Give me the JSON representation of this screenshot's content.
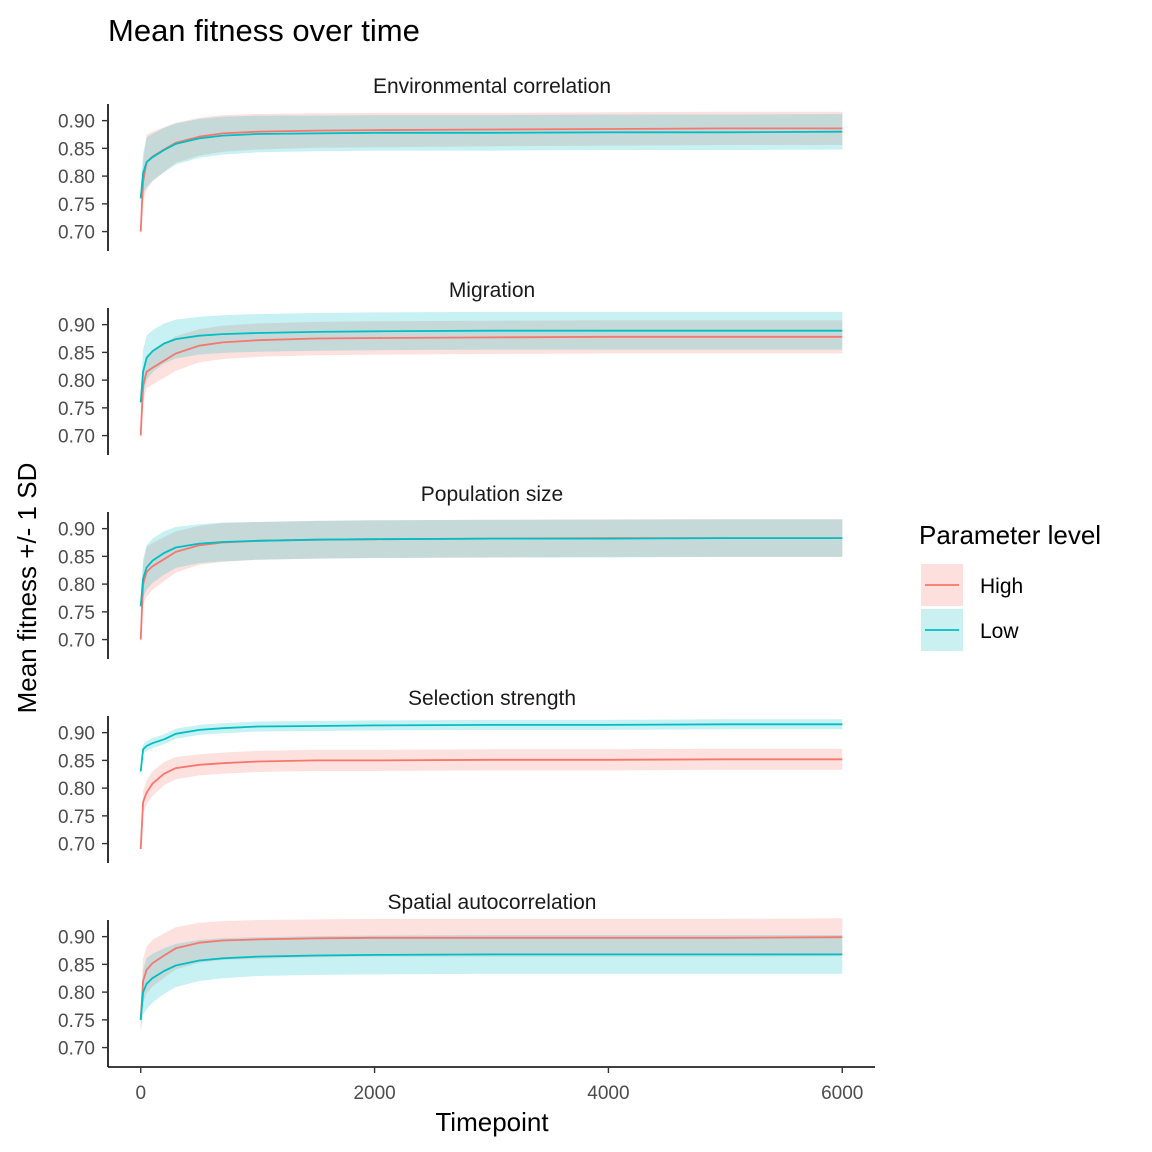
{
  "chart_data": {
    "type": "line",
    "title": "Mean fitness over time",
    "xlabel": "Timepoint",
    "ylabel": "Mean fitness +/- 1 SD",
    "xlim": [
      -280,
      6280
    ],
    "ylim": [
      0.665,
      0.93
    ],
    "xticks": [
      0,
      2000,
      4000,
      6000
    ],
    "yticks": [
      0.7,
      0.75,
      0.8,
      0.85,
      0.9
    ],
    "ytick_labels": [
      "0.70",
      "0.75",
      "0.80",
      "0.85",
      "0.90"
    ],
    "xtick_labels": [
      "0",
      "2000",
      "4000",
      "6000"
    ],
    "x": [
      0,
      20,
      50,
      100,
      200,
      300,
      500,
      700,
      1000,
      1500,
      2000,
      3000,
      4000,
      5000,
      6000
    ],
    "legend": {
      "title": "Parameter level",
      "position": "right",
      "entries": [
        {
          "name": "High",
          "color": "#F8766D",
          "fill": "#fde0de"
        },
        {
          "name": "Low",
          "color": "#00BFC4",
          "fill": "#cbf0f1"
        }
      ]
    },
    "facets": [
      {
        "name": "Environmental correlation",
        "series": [
          {
            "name": "High",
            "mean": [
              0.7,
              0.79,
              0.825,
              0.835,
              0.848,
              0.86,
              0.871,
              0.877,
              0.88,
              0.882,
              0.883,
              0.884,
              0.885,
              0.886,
              0.886
            ],
            "sd": [
              0.01,
              0.035,
              0.05,
              0.045,
              0.04,
              0.036,
              0.034,
              0.033,
              0.032,
              0.031,
              0.031,
              0.03,
              0.03,
              0.03,
              0.03
            ]
          },
          {
            "name": "Low",
            "mean": [
              0.76,
              0.805,
              0.825,
              0.834,
              0.847,
              0.858,
              0.868,
              0.873,
              0.876,
              0.877,
              0.878,
              0.878,
              0.879,
              0.879,
              0.88
            ],
            "sd": [
              0.02,
              0.035,
              0.045,
              0.042,
              0.04,
              0.037,
              0.035,
              0.034,
              0.033,
              0.032,
              0.032,
              0.032,
              0.032,
              0.032,
              0.032
            ]
          }
        ]
      },
      {
        "name": "Migration",
        "series": [
          {
            "name": "High",
            "mean": [
              0.7,
              0.79,
              0.815,
              0.822,
              0.835,
              0.848,
              0.862,
              0.868,
              0.872,
              0.875,
              0.876,
              0.877,
              0.878,
              0.878,
              0.878
            ],
            "sd": [
              0.01,
              0.03,
              0.03,
              0.03,
              0.031,
              0.031,
              0.03,
              0.03,
              0.03,
              0.03,
              0.03,
              0.03,
              0.03,
              0.03,
              0.03
            ]
          },
          {
            "name": "Low",
            "mean": [
              0.76,
              0.815,
              0.84,
              0.852,
              0.866,
              0.874,
              0.88,
              0.883,
              0.885,
              0.887,
              0.888,
              0.889,
              0.889,
              0.889,
              0.889
            ],
            "sd": [
              0.02,
              0.04,
              0.04,
              0.038,
              0.036,
              0.035,
              0.034,
              0.034,
              0.034,
              0.034,
              0.034,
              0.034,
              0.034,
              0.034,
              0.034
            ]
          }
        ]
      },
      {
        "name": "Population size",
        "series": [
          {
            "name": "High",
            "mean": [
              0.7,
              0.8,
              0.822,
              0.832,
              0.845,
              0.858,
              0.87,
              0.875,
              0.878,
              0.88,
              0.881,
              0.882,
              0.883,
              0.883,
              0.883
            ],
            "sd": [
              0.01,
              0.035,
              0.045,
              0.042,
              0.04,
              0.037,
              0.035,
              0.035,
              0.034,
              0.034,
              0.034,
              0.034,
              0.034,
              0.034,
              0.034
            ]
          },
          {
            "name": "Low",
            "mean": [
              0.76,
              0.81,
              0.83,
              0.842,
              0.856,
              0.866,
              0.873,
              0.876,
              0.878,
              0.88,
              0.881,
              0.882,
              0.882,
              0.883,
              0.883
            ],
            "sd": [
              0.02,
              0.035,
              0.04,
              0.04,
              0.039,
              0.037,
              0.035,
              0.035,
              0.034,
              0.034,
              0.034,
              0.034,
              0.034,
              0.034,
              0.034
            ]
          }
        ]
      },
      {
        "name": "Selection strength",
        "series": [
          {
            "name": "High",
            "mean": [
              0.69,
              0.775,
              0.792,
              0.808,
              0.826,
              0.836,
              0.842,
              0.845,
              0.848,
              0.85,
              0.85,
              0.851,
              0.851,
              0.852,
              0.852
            ],
            "sd": [
              0.005,
              0.02,
              0.022,
              0.022,
              0.021,
              0.02,
              0.019,
              0.019,
              0.019,
              0.019,
              0.019,
              0.019,
              0.019,
              0.019,
              0.019
            ]
          },
          {
            "name": "Low",
            "mean": [
              0.83,
              0.87,
              0.876,
              0.881,
              0.888,
              0.898,
              0.905,
              0.908,
              0.911,
              0.912,
              0.913,
              0.914,
              0.914,
              0.915,
              0.915
            ],
            "sd": [
              0.005,
              0.008,
              0.009,
              0.009,
              0.009,
              0.009,
              0.009,
              0.009,
              0.009,
              0.009,
              0.009,
              0.009,
              0.009,
              0.009,
              0.009
            ]
          }
        ]
      },
      {
        "name": "Spatial autocorrelation",
        "series": [
          {
            "name": "High",
            "mean": [
              0.75,
              0.82,
              0.84,
              0.852,
              0.866,
              0.879,
              0.889,
              0.893,
              0.895,
              0.897,
              0.898,
              0.898,
              0.898,
              0.898,
              0.899
            ],
            "sd": [
              0.02,
              0.04,
              0.042,
              0.042,
              0.04,
              0.038,
              0.036,
              0.035,
              0.035,
              0.034,
              0.034,
              0.034,
              0.034,
              0.034,
              0.034
            ]
          },
          {
            "name": "Low",
            "mean": [
              0.75,
              0.8,
              0.815,
              0.825,
              0.838,
              0.848,
              0.857,
              0.861,
              0.864,
              0.866,
              0.867,
              0.868,
              0.868,
              0.868,
              0.868
            ],
            "sd": [
              0.02,
              0.04,
              0.046,
              0.044,
              0.041,
              0.039,
              0.037,
              0.036,
              0.035,
              0.035,
              0.035,
              0.035,
              0.035,
              0.035,
              0.035
            ]
          }
        ]
      }
    ]
  }
}
